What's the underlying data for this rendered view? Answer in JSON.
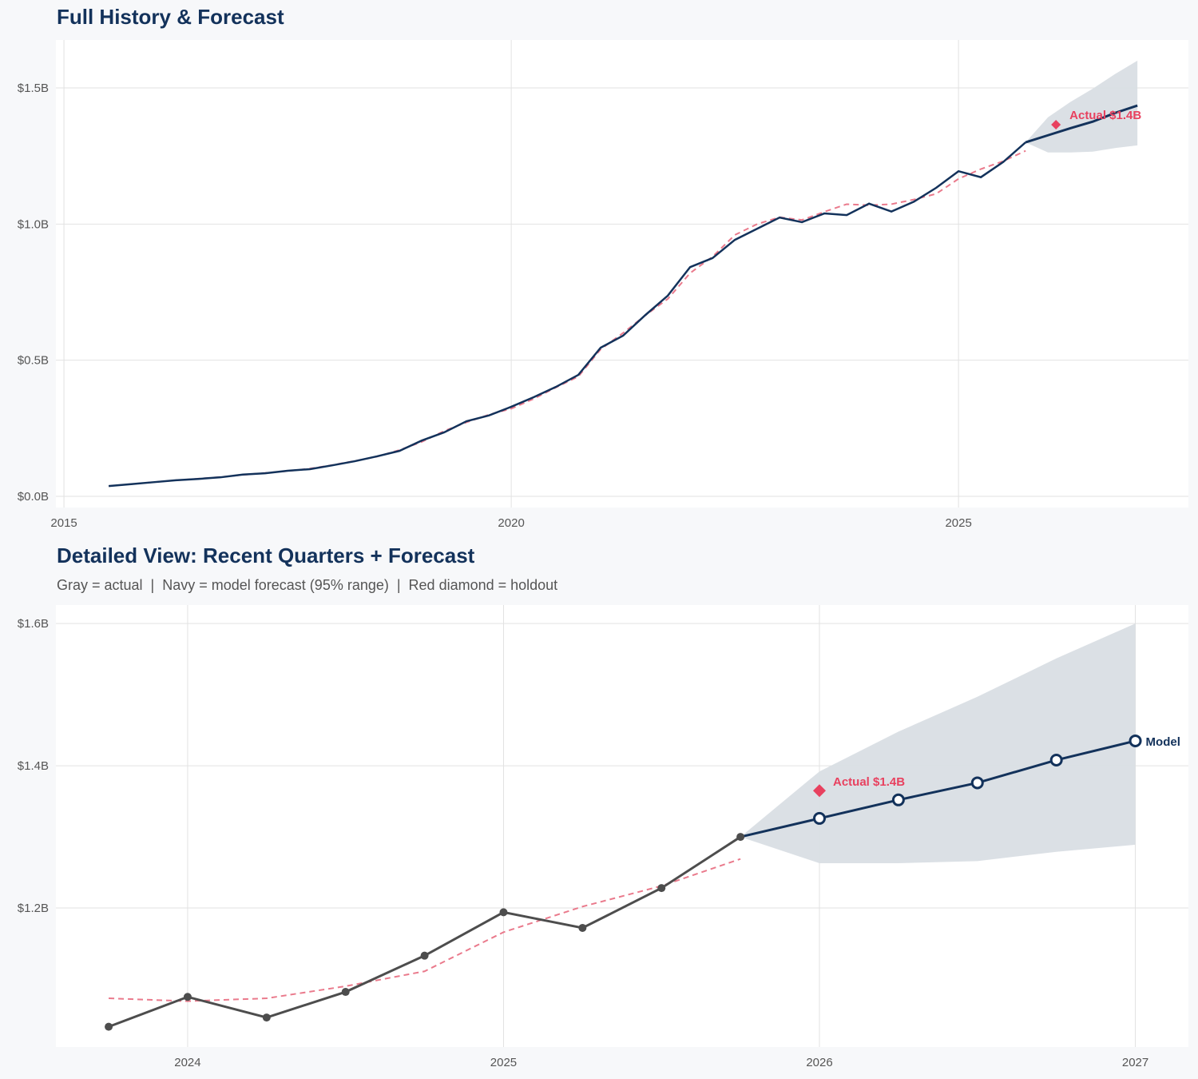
{
  "chart_data": [
    {
      "type": "line",
      "title": "Full History & Forecast",
      "xlim": [
        2014.91,
        2027.57
      ],
      "ylim": [
        -0.041,
        1.676
      ],
      "grid": true,
      "x_ticks": [
        2015,
        2020,
        2025
      ],
      "x_tick_labels": [
        "2015",
        "2020",
        "2025"
      ],
      "y_ticks": [
        0,
        0.5,
        1.0,
        1.5
      ],
      "y_tick_labels": [
        "$0.0B",
        "$0.5B",
        "$1.0B",
        "$1.5B"
      ],
      "history": {
        "x": [
          2015.5,
          2015.75,
          2016,
          2016.25,
          2016.5,
          2016.75,
          2017,
          2017.25,
          2017.5,
          2017.75,
          2018,
          2018.25,
          2018.5,
          2018.75,
          2019,
          2019.25,
          2019.5,
          2019.75,
          2020,
          2020.25,
          2020.5,
          2020.75,
          2021,
          2021.25,
          2021.5,
          2021.75,
          2022,
          2022.25,
          2022.5,
          2022.75,
          2023,
          2023.25,
          2023.5,
          2023.75,
          2024,
          2024.25,
          2024.5,
          2024.75,
          2025,
          2025.25,
          2025.5,
          2025.75
        ],
        "actual": [
          0.038,
          0.045,
          0.052,
          0.059,
          0.064,
          0.07,
          0.08,
          0.085,
          0.094,
          0.1,
          0.114,
          0.129,
          0.147,
          0.167,
          0.205,
          0.235,
          0.276,
          0.297,
          0.329,
          0.364,
          0.402,
          0.446,
          0.546,
          0.59,
          0.666,
          0.737,
          0.842,
          0.875,
          0.942,
          0.983,
          1.024,
          1.007,
          1.039,
          1.033,
          1.075,
          1.046,
          1.082,
          1.133,
          1.194,
          1.172,
          1.228,
          1.3
        ],
        "fitted": [
          0.038,
          0.045,
          0.052,
          0.059,
          0.065,
          0.071,
          0.079,
          0.086,
          0.093,
          0.102,
          0.115,
          0.13,
          0.146,
          0.17,
          0.2,
          0.24,
          0.272,
          0.3,
          0.322,
          0.358,
          0.4,
          0.44,
          0.54,
          0.6,
          0.665,
          0.725,
          0.82,
          0.88,
          0.96,
          1.0,
          1.025,
          1.015,
          1.045,
          1.073,
          1.069,
          1.073,
          1.09,
          1.111,
          1.166,
          1.202,
          1.231,
          1.269
        ]
      },
      "forecast": {
        "x": [
          2025.75,
          2026,
          2026.25,
          2026.5,
          2026.75,
          2027
        ],
        "mean": [
          1.3,
          1.326,
          1.352,
          1.376,
          1.408,
          1.435
        ],
        "lower": [
          1.3,
          1.263,
          1.263,
          1.266,
          1.279,
          1.289
        ],
        "upper": [
          1.3,
          1.392,
          1.448,
          1.497,
          1.551,
          1.6
        ]
      },
      "holdout": {
        "x": 2026,
        "y": 1.365,
        "label": "Actual $1.4B"
      }
    },
    {
      "type": "line",
      "title": "Detailed View: Recent Quarters + Forecast",
      "subtitle": "Gray = actual  |  Navy = model forecast (95% range)  |  Red diamond = holdout",
      "xlim": [
        2023.583,
        2027.168
      ],
      "ylim": [
        1.0045,
        1.626
      ],
      "grid": true,
      "x_ticks": [
        2024,
        2025,
        2026,
        2027
      ],
      "x_tick_labels": [
        "2024",
        "2025",
        "2026",
        "2027"
      ],
      "y_ticks": [
        1.2,
        1.4,
        1.6
      ],
      "y_tick_labels": [
        "$1.2B",
        "$1.4B",
        "$1.6B"
      ],
      "history": {
        "x": [
          2023.75,
          2024,
          2024.25,
          2024.5,
          2024.75,
          2025,
          2025.25,
          2025.5,
          2025.75
        ],
        "actual": [
          1.033,
          1.075,
          1.046,
          1.082,
          1.133,
          1.194,
          1.172,
          1.228,
          1.3
        ],
        "fitted": [
          1.073,
          1.069,
          1.073,
          1.09,
          1.111,
          1.166,
          1.202,
          1.231,
          1.269
        ]
      },
      "forecast": {
        "x": [
          2025.75,
          2026,
          2026.25,
          2026.5,
          2026.75,
          2027
        ],
        "mean": [
          1.3,
          1.326,
          1.352,
          1.376,
          1.408,
          1.435
        ],
        "lower": [
          1.3,
          1.263,
          1.263,
          1.266,
          1.279,
          1.289
        ],
        "upper": [
          1.3,
          1.392,
          1.448,
          1.497,
          1.551,
          1.6
        ],
        "end_label": "Model"
      },
      "holdout": {
        "x": 2026,
        "y": 1.365,
        "label": "Actual $1.4B"
      }
    }
  ],
  "colors": {
    "navy": "#13325b",
    "gray": "#4d4d4d",
    "red": "#e8415f",
    "fitted": "#ea7a8c",
    "band": "#d9dee4",
    "grid": "#e2e2e2"
  }
}
